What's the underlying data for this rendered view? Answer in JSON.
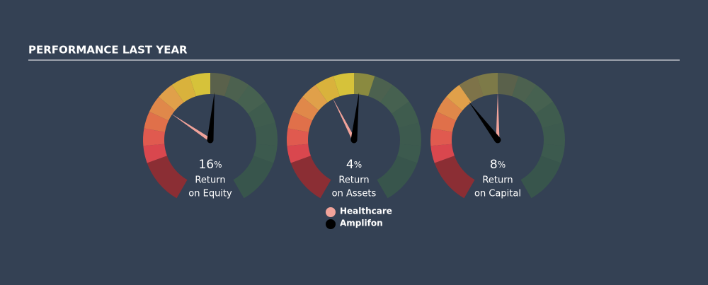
{
  "title": "PERFORMANCE LAST YEAR",
  "gauges": [
    {
      "value": 16,
      "unit": "%",
      "label": [
        "Return",
        "on Equity"
      ]
    },
    {
      "value": 4,
      "unit": "%",
      "label": [
        "Return",
        "on Assets"
      ]
    },
    {
      "value": 8,
      "unit": "%",
      "label": [
        "Return",
        "on Capital"
      ]
    }
  ],
  "legend": [
    {
      "name": "Healthcare",
      "color": "#f2a39a"
    },
    {
      "name": "Amplifon",
      "color": "#000000"
    }
  ]
}
